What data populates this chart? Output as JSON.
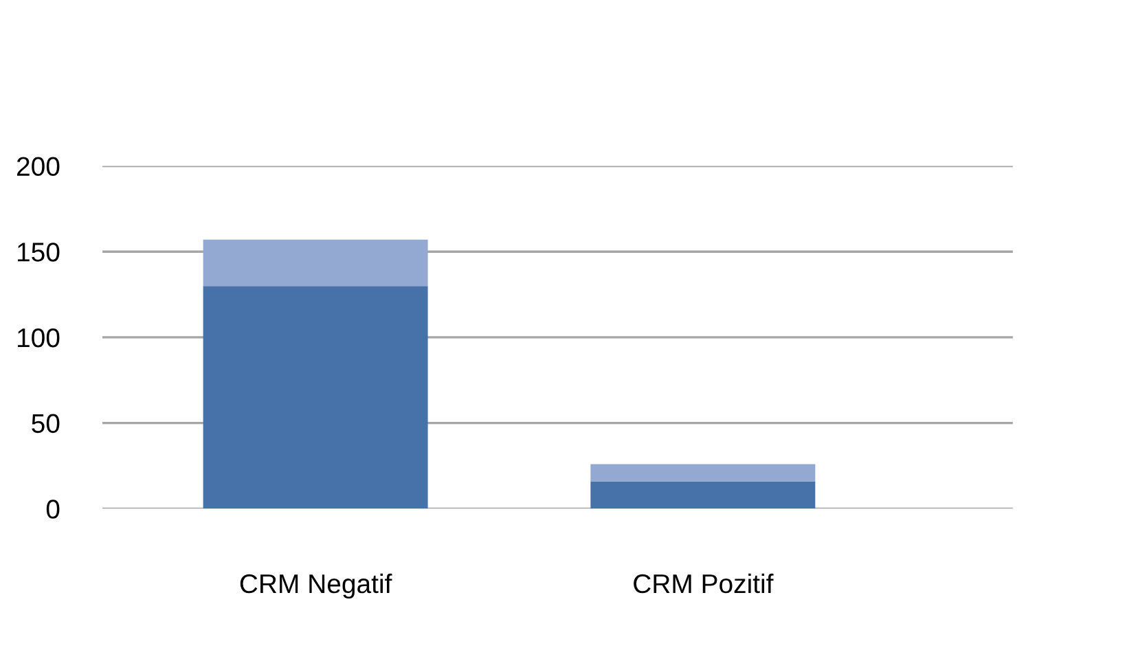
{
  "chart_data": {
    "type": "bar",
    "stacked": true,
    "categories": [
      "CRM Negatif",
      "CRM Pozitif"
    ],
    "series": [
      {
        "color": "#4672a9",
        "values": [
          130,
          16
        ]
      },
      {
        "color": "#93a9d1",
        "values": [
          27,
          10
        ]
      }
    ],
    "ylim": [
      0,
      200
    ],
    "yticks": [
      0,
      50,
      100,
      150,
      200
    ],
    "grid": "y"
  }
}
